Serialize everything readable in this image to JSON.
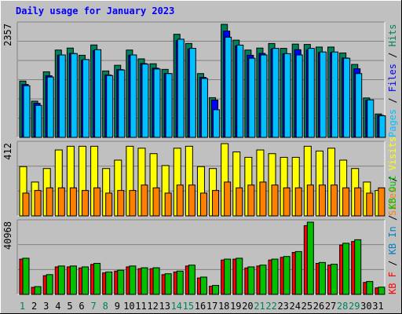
{
  "title": "Daily usage for January 2023",
  "colors": {
    "hits": "#00805c",
    "files": "#0000ff",
    "pages": "#00c0ff",
    "visits": "#ffff00",
    "sites": "#ff8000",
    "kb_in": "#0080c0",
    "kb_out": "#00c000",
    "kb_f": "#ff0000",
    "axis_day_weekday": "#000000",
    "axis_day_weekend": "#00805c"
  },
  "chart_data": [
    {
      "type": "bar",
      "title": "",
      "ylabel": "2357",
      "ymax": 2357,
      "legend": [
        {
          "label": "Hits",
          "color": "#00805c"
        },
        {
          "label": "Files",
          "color": "#0000ff"
        },
        {
          "label": "Pages",
          "color": "#00c0ff"
        }
      ],
      "categories": [
        "1",
        "2",
        "3",
        "4",
        "5",
        "6",
        "7",
        "8",
        "9",
        "10",
        "11",
        "12",
        "13",
        "14",
        "15",
        "16",
        "17",
        "18",
        "19",
        "20",
        "21",
        "22",
        "23",
        "24",
        "25",
        "26",
        "27",
        "28",
        "29",
        "30",
        "31"
      ],
      "series": [
        {
          "name": "Hits",
          "values": [
            1174,
            755,
            1367,
            1821,
            1862,
            1712,
            1927,
            1385,
            1503,
            1821,
            1637,
            1535,
            1418,
            2150,
            1958,
            1330,
            828,
            2357,
            2027,
            1821,
            1862,
            1958,
            1856,
            1945,
            1938,
            1883,
            1883,
            1760,
            1521,
            822,
            488
          ]
        },
        {
          "name": "Pages",
          "values": [
            1077,
            667,
            1258,
            1719,
            1747,
            1623,
            1828,
            1289,
            1405,
            1719,
            1528,
            1426,
            1330,
            2047,
            1856,
            1228,
            576,
            2089,
            1924,
            1650,
            1719,
            1856,
            1746,
            1719,
            1856,
            1781,
            1781,
            1650,
            1330,
            783,
            450
          ]
        }
      ]
    },
    {
      "type": "bar",
      "title": "",
      "ylabel": "412",
      "ymax": 412,
      "legend": [
        {
          "label": "Visits",
          "color": "#ffff00"
        },
        {
          "label": "Sites",
          "color": "#ff8000"
        }
      ],
      "categories": [
        "1",
        "2",
        "3",
        "4",
        "5",
        "6",
        "7",
        "8",
        "9",
        "10",
        "11",
        "12",
        "13",
        "14",
        "15",
        "16",
        "17",
        "18",
        "19",
        "20",
        "21",
        "22",
        "23",
        "24",
        "25",
        "26",
        "27",
        "28",
        "29",
        "30",
        "31"
      ],
      "series": [
        {
          "name": "Visits",
          "values": [
            281,
            193,
            270,
            376,
            397,
            397,
            397,
            270,
            318,
            397,
            386,
            355,
            287,
            386,
            397,
            281,
            270,
            412,
            365,
            334,
            376,
            355,
            334,
            334,
            397,
            370,
            386,
            318,
            270,
            193,
            145
          ]
        },
        {
          "name": "Sites",
          "values": [
            130,
            145,
            160,
            160,
            160,
            145,
            160,
            130,
            145,
            145,
            176,
            160,
            130,
            176,
            176,
            130,
            145,
            193,
            160,
            176,
            193,
            176,
            160,
            160,
            176,
            176,
            176,
            160,
            160,
            130,
            160
          ]
        }
      ]
    },
    {
      "type": "bar",
      "title": "",
      "ylabel": "40968",
      "ymax": 40968,
      "legend": [
        {
          "label": "KB F",
          "color": "#ff0000"
        },
        {
          "label": "KB In",
          "color": "#0080c0"
        },
        {
          "label": "KB Out",
          "color": "#00c000"
        }
      ],
      "categories": [
        "1",
        "2",
        "3",
        "4",
        "5",
        "6",
        "7",
        "8",
        "9",
        "10",
        "11",
        "12",
        "13",
        "14",
        "15",
        "16",
        "17",
        "18",
        "19",
        "20",
        "21",
        "22",
        "23",
        "24",
        "25",
        "26",
        "27",
        "28",
        "29",
        "30",
        "31"
      ],
      "series": [
        {
          "name": "KB F",
          "values": [
            20000,
            4000,
            10600,
            15600,
            15600,
            15000,
            17000,
            12200,
            13200,
            15600,
            14600,
            14600,
            11200,
            12700,
            16100,
            9300,
            4600,
            19500,
            20000,
            15000,
            16100,
            19500,
            21000,
            23800,
            39000,
            17600,
            16600,
            28000,
            30000,
            6800,
            3700
          ]
        },
        {
          "name": "KB Out",
          "values": [
            20500,
            4400,
            11200,
            16100,
            16100,
            15600,
            17600,
            12700,
            13700,
            16100,
            15100,
            15100,
            11700,
            13200,
            16600,
            9800,
            5100,
            20000,
            20500,
            15600,
            16600,
            20000,
            21500,
            24300,
            40968,
            18100,
            17100,
            29000,
            31000,
            7300,
            4100
          ]
        }
      ]
    }
  ]
}
